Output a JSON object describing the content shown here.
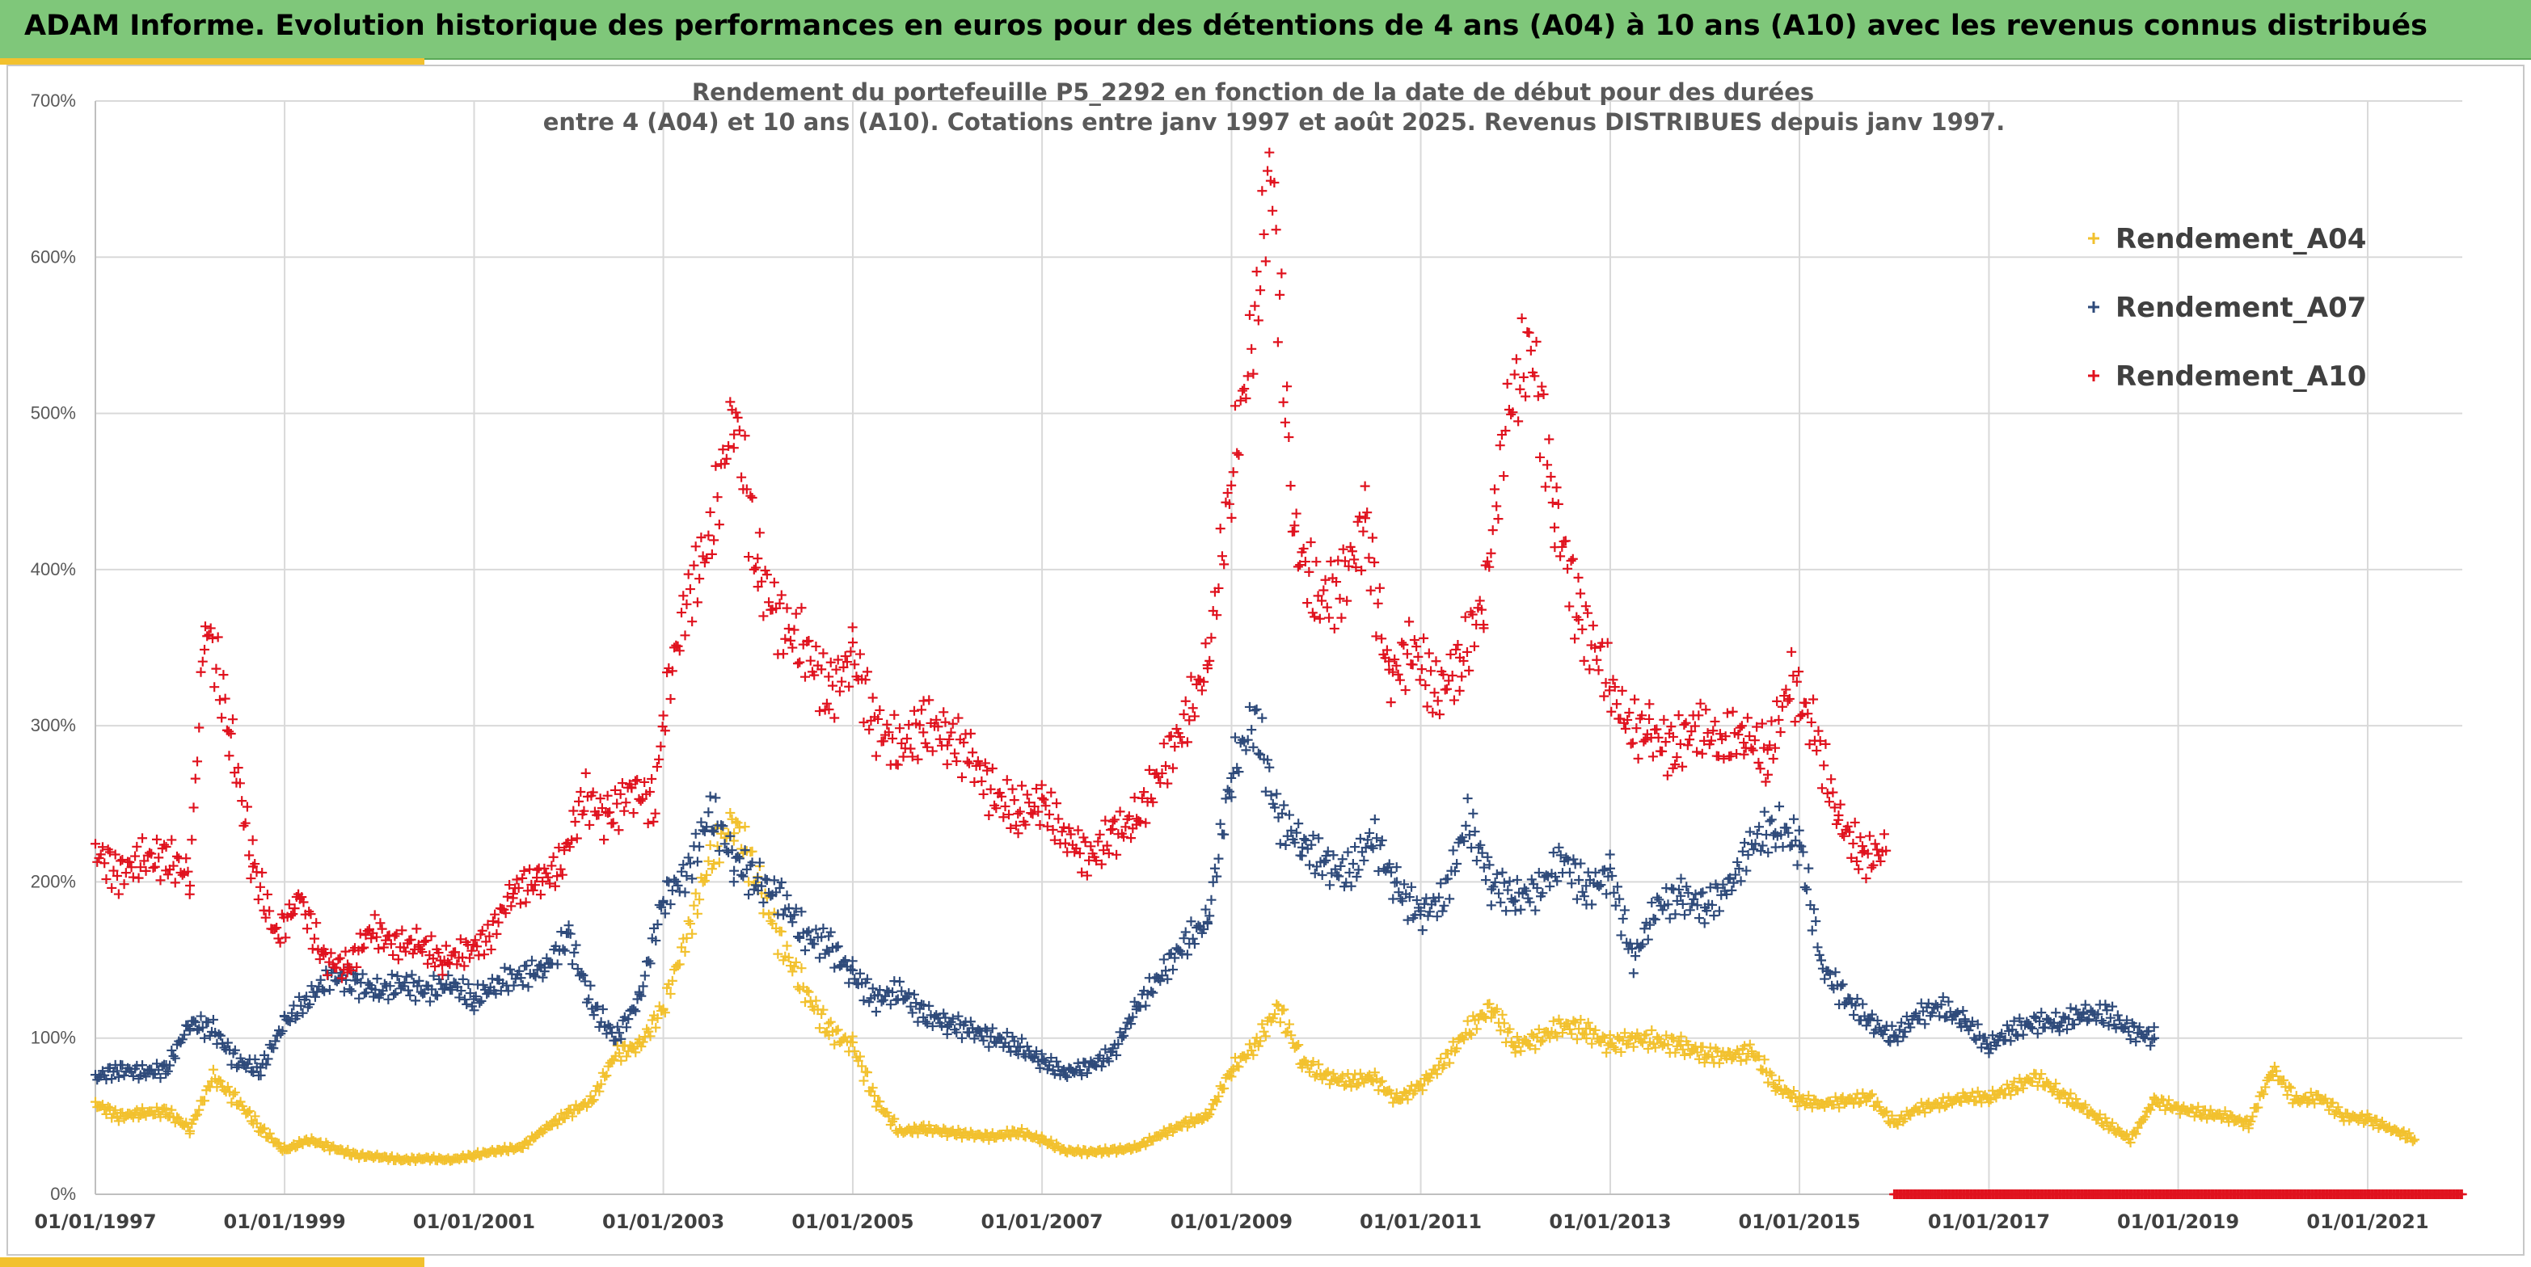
{
  "banner": {
    "title": "ADAM Informe. Evolution historique des performances en euros pour des détentions de 4 ans (A04) à 10 ans (A10) avec les revenus connus distribués"
  },
  "colors": {
    "banner": "#7fc77a",
    "accent": "#f2c12e",
    "A04": "#f2c12e",
    "A07": "#2e4a7a",
    "A10": "#e0121e"
  },
  "chart_data": {
    "type": "scatter",
    "title_line1": "Rendement du portefeuille P5_2292 en fonction de la date de début pour des durées",
    "title_line2": "entre 4 (A04) et 10 ans (A10). Cotations entre janv 1997 et août 2025. Revenus DISTRIBUES depuis janv 1997.",
    "xlabel": "",
    "ylabel": "",
    "xlim": [
      "1997-01-01",
      "2022-01-01"
    ],
    "ylim": [
      0,
      700
    ],
    "y_ticks": [
      "0%",
      "100%",
      "200%",
      "300%",
      "400%",
      "500%",
      "600%",
      "700%"
    ],
    "x_ticks": [
      "01/01/1997",
      "01/01/1999",
      "01/01/2001",
      "01/01/2003",
      "01/01/2005",
      "01/01/2007",
      "01/01/2009",
      "01/01/2011",
      "01/01/2013",
      "01/01/2015",
      "01/01/2017",
      "01/01/2019",
      "01/01/2021"
    ],
    "grid": true,
    "legend_position": "top-right",
    "marker": "+",
    "series": [
      {
        "name": "Rendement_A04",
        "color": "#f2c12e",
        "points": [
          [
            "1997-01-01",
            58
          ],
          [
            "1997-04-01",
            50
          ],
          [
            "1997-07-01",
            52
          ],
          [
            "1997-10-01",
            53
          ],
          [
            "1998-01-01",
            42
          ],
          [
            "1998-04-01",
            75
          ],
          [
            "1998-07-01",
            60
          ],
          [
            "1998-10-01",
            42
          ],
          [
            "1999-01-01",
            28
          ],
          [
            "1999-04-01",
            35
          ],
          [
            "1999-07-01",
            30
          ],
          [
            "1999-10-01",
            25
          ],
          [
            "2000-01-01",
            24
          ],
          [
            "2000-04-01",
            22
          ],
          [
            "2000-07-01",
            23
          ],
          [
            "2000-10-01",
            22
          ],
          [
            "2001-01-01",
            25
          ],
          [
            "2001-04-01",
            28
          ],
          [
            "2001-07-01",
            30
          ],
          [
            "2001-10-01",
            42
          ],
          [
            "2002-01-01",
            52
          ],
          [
            "2002-04-01",
            60
          ],
          [
            "2002-07-01",
            90
          ],
          [
            "2002-10-01",
            95
          ],
          [
            "2003-01-01",
            120
          ],
          [
            "2003-04-01",
            165
          ],
          [
            "2003-07-01",
            215
          ],
          [
            "2003-10-01",
            240
          ],
          [
            "2004-01-01",
            200
          ],
          [
            "2004-04-01",
            160
          ],
          [
            "2004-07-01",
            130
          ],
          [
            "2004-10-01",
            105
          ],
          [
            "2005-01-01",
            95
          ],
          [
            "2005-04-01",
            60
          ],
          [
            "2005-07-01",
            40
          ],
          [
            "2005-10-01",
            42
          ],
          [
            "2006-01-01",
            40
          ],
          [
            "2006-04-01",
            38
          ],
          [
            "2006-07-01",
            37
          ],
          [
            "2006-10-01",
            40
          ],
          [
            "2007-01-01",
            35
          ],
          [
            "2007-04-01",
            28
          ],
          [
            "2007-07-01",
            27
          ],
          [
            "2007-10-01",
            28
          ],
          [
            "2008-01-01",
            30
          ],
          [
            "2008-04-01",
            38
          ],
          [
            "2008-07-01",
            45
          ],
          [
            "2008-10-01",
            50
          ],
          [
            "2009-01-01",
            80
          ],
          [
            "2009-04-01",
            95
          ],
          [
            "2009-07-01",
            120
          ],
          [
            "2009-10-01",
            85
          ],
          [
            "2010-01-01",
            75
          ],
          [
            "2010-04-01",
            72
          ],
          [
            "2010-07-01",
            75
          ],
          [
            "2010-10-01",
            60
          ],
          [
            "2011-01-01",
            70
          ],
          [
            "2011-04-01",
            85
          ],
          [
            "2011-07-01",
            105
          ],
          [
            "2011-10-01",
            120
          ],
          [
            "2012-01-01",
            95
          ],
          [
            "2012-04-01",
            100
          ],
          [
            "2012-07-01",
            108
          ],
          [
            "2012-10-01",
            105
          ],
          [
            "2013-01-01",
            95
          ],
          [
            "2013-04-01",
            100
          ],
          [
            "2013-07-01",
            98
          ],
          [
            "2013-10-01",
            95
          ],
          [
            "2014-01-01",
            90
          ],
          [
            "2014-04-01",
            88
          ],
          [
            "2014-07-01",
            92
          ],
          [
            "2014-10-01",
            70
          ],
          [
            "2015-01-01",
            60
          ],
          [
            "2015-04-01",
            58
          ],
          [
            "2015-07-01",
            60
          ],
          [
            "2015-10-01",
            62
          ],
          [
            "2016-01-01",
            45
          ],
          [
            "2016-04-01",
            55
          ],
          [
            "2016-07-01",
            58
          ],
          [
            "2016-10-01",
            62
          ],
          [
            "2017-01-01",
            62
          ],
          [
            "2017-04-01",
            68
          ],
          [
            "2017-07-01",
            75
          ],
          [
            "2017-10-01",
            65
          ],
          [
            "2018-01-01",
            55
          ],
          [
            "2018-04-01",
            45
          ],
          [
            "2018-07-01",
            35
          ],
          [
            "2018-10-01",
            60
          ],
          [
            "2019-01-01",
            55
          ],
          [
            "2019-04-01",
            52
          ],
          [
            "2019-07-01",
            50
          ],
          [
            "2019-10-01",
            45
          ],
          [
            "2020-01-01",
            80
          ],
          [
            "2020-04-01",
            60
          ],
          [
            "2020-07-01",
            62
          ],
          [
            "2020-10-01",
            50
          ],
          [
            "2021-01-01",
            48
          ],
          [
            "2021-04-01",
            42
          ],
          [
            "2021-07-01",
            35
          ]
        ]
      },
      {
        "name": "Rendement_A07",
        "color": "#2e4a7a",
        "points": [
          [
            "1997-01-01",
            75
          ],
          [
            "1997-04-01",
            80
          ],
          [
            "1997-07-01",
            78
          ],
          [
            "1997-10-01",
            80
          ],
          [
            "1998-01-01",
            110
          ],
          [
            "1998-04-01",
            105
          ],
          [
            "1998-07-01",
            85
          ],
          [
            "1998-10-01",
            80
          ],
          [
            "1999-01-01",
            110
          ],
          [
            "1999-04-01",
            125
          ],
          [
            "1999-07-01",
            140
          ],
          [
            "1999-10-01",
            135
          ],
          [
            "2000-01-01",
            130
          ],
          [
            "2000-04-01",
            135
          ],
          [
            "2000-07-01",
            130
          ],
          [
            "2000-10-01",
            135
          ],
          [
            "2001-01-01",
            125
          ],
          [
            "2001-04-01",
            135
          ],
          [
            "2001-07-01",
            140
          ],
          [
            "2001-10-01",
            145
          ],
          [
            "2002-01-01",
            165
          ],
          [
            "2002-04-01",
            120
          ],
          [
            "2002-07-01",
            100
          ],
          [
            "2002-10-01",
            125
          ],
          [
            "2003-01-01",
            190
          ],
          [
            "2003-04-01",
            205
          ],
          [
            "2003-07-01",
            245
          ],
          [
            "2003-10-01",
            215
          ],
          [
            "2004-01-01",
            200
          ],
          [
            "2004-04-01",
            190
          ],
          [
            "2004-07-01",
            165
          ],
          [
            "2004-10-01",
            160
          ],
          [
            "2005-01-01",
            140
          ],
          [
            "2005-04-01",
            125
          ],
          [
            "2005-07-01",
            130
          ],
          [
            "2005-10-01",
            115
          ],
          [
            "2006-01-01",
            110
          ],
          [
            "2006-04-01",
            105
          ],
          [
            "2006-07-01",
            100
          ],
          [
            "2006-10-01",
            95
          ],
          [
            "2007-01-01",
            85
          ],
          [
            "2007-04-01",
            78
          ],
          [
            "2007-07-01",
            82
          ],
          [
            "2007-10-01",
            90
          ],
          [
            "2008-01-01",
            120
          ],
          [
            "2008-04-01",
            140
          ],
          [
            "2008-07-01",
            160
          ],
          [
            "2008-10-01",
            175
          ],
          [
            "2009-01-01",
            270
          ],
          [
            "2009-04-01",
            305
          ],
          [
            "2009-07-01",
            240
          ],
          [
            "2009-10-01",
            225
          ],
          [
            "2010-01-01",
            210
          ],
          [
            "2010-04-01",
            205
          ],
          [
            "2010-07-01",
            230
          ],
          [
            "2010-10-01",
            195
          ],
          [
            "2011-01-01",
            180
          ],
          [
            "2011-04-01",
            190
          ],
          [
            "2011-07-01",
            240
          ],
          [
            "2011-10-01",
            200
          ],
          [
            "2012-01-01",
            190
          ],
          [
            "2012-04-01",
            195
          ],
          [
            "2012-07-01",
            215
          ],
          [
            "2012-10-01",
            195
          ],
          [
            "2013-01-01",
            205
          ],
          [
            "2013-04-01",
            150
          ],
          [
            "2013-07-01",
            185
          ],
          [
            "2013-10-01",
            190
          ],
          [
            "2014-01-01",
            185
          ],
          [
            "2014-04-01",
            195
          ],
          [
            "2014-07-01",
            225
          ],
          [
            "2014-10-01",
            235
          ],
          [
            "2015-01-01",
            225
          ],
          [
            "2015-04-01",
            145
          ],
          [
            "2015-07-01",
            125
          ],
          [
            "2015-10-01",
            110
          ],
          [
            "2016-01-01",
            100
          ],
          [
            "2016-04-01",
            115
          ],
          [
            "2016-07-01",
            120
          ],
          [
            "2016-10-01",
            110
          ],
          [
            "2017-01-01",
            95
          ],
          [
            "2017-04-01",
            105
          ],
          [
            "2017-07-01",
            110
          ],
          [
            "2017-10-01",
            110
          ],
          [
            "2018-01-01",
            115
          ],
          [
            "2018-04-01",
            115
          ],
          [
            "2018-07-01",
            105
          ],
          [
            "2018-10-01",
            100
          ]
        ]
      },
      {
        "name": "Rendement_A10",
        "color": "#e0121e",
        "points": [
          [
            "1997-01-01",
            220
          ],
          [
            "1997-04-01",
            205
          ],
          [
            "1997-07-01",
            215
          ],
          [
            "1997-10-01",
            215
          ],
          [
            "1998-01-01",
            205
          ],
          [
            "1998-03-01",
            370
          ],
          [
            "1998-06-01",
            300
          ],
          [
            "1998-09-01",
            210
          ],
          [
            "1998-12-01",
            165
          ],
          [
            "1999-03-01",
            190
          ],
          [
            "1999-06-01",
            150
          ],
          [
            "1999-09-01",
            145
          ],
          [
            "1999-12-01",
            170
          ],
          [
            "2000-03-01",
            160
          ],
          [
            "2000-06-01",
            160
          ],
          [
            "2000-09-01",
            150
          ],
          [
            "2000-12-01",
            155
          ],
          [
            "2001-03-01",
            165
          ],
          [
            "2001-06-01",
            195
          ],
          [
            "2001-09-01",
            200
          ],
          [
            "2001-12-01",
            210
          ],
          [
            "2002-03-01",
            255
          ],
          [
            "2002-06-01",
            240
          ],
          [
            "2002-09-01",
            260
          ],
          [
            "2002-12-01",
            250
          ],
          [
            "2003-01-01",
            310
          ],
          [
            "2003-04-01",
            380
          ],
          [
            "2003-07-01",
            420
          ],
          [
            "2003-10-01",
            505
          ],
          [
            "2004-01-01",
            400
          ],
          [
            "2004-04-01",
            365
          ],
          [
            "2004-07-01",
            350
          ],
          [
            "2004-10-01",
            320
          ],
          [
            "2005-01-01",
            345
          ],
          [
            "2005-04-01",
            300
          ],
          [
            "2005-07-01",
            285
          ],
          [
            "2005-10-01",
            300
          ],
          [
            "2006-01-01",
            295
          ],
          [
            "2006-04-01",
            280
          ],
          [
            "2006-07-01",
            255
          ],
          [
            "2006-10-01",
            245
          ],
          [
            "2007-01-01",
            250
          ],
          [
            "2007-04-01",
            230
          ],
          [
            "2007-07-01",
            215
          ],
          [
            "2007-10-01",
            230
          ],
          [
            "2008-01-01",
            240
          ],
          [
            "2008-04-01",
            270
          ],
          [
            "2008-07-01",
            300
          ],
          [
            "2008-10-01",
            340
          ],
          [
            "2009-01-01",
            460
          ],
          [
            "2009-04-01",
            560
          ],
          [
            "2009-06-01",
            660
          ],
          [
            "2009-09-01",
            420
          ],
          [
            "2009-12-01",
            380
          ],
          [
            "2010-03-01",
            390
          ],
          [
            "2010-06-01",
            430
          ],
          [
            "2010-09-01",
            330
          ],
          [
            "2010-12-01",
            350
          ],
          [
            "2011-03-01",
            320
          ],
          [
            "2011-06-01",
            340
          ],
          [
            "2011-09-01",
            380
          ],
          [
            "2011-12-01",
            500
          ],
          [
            "2012-03-01",
            545
          ],
          [
            "2012-06-01",
            440
          ],
          [
            "2012-09-01",
            370
          ],
          [
            "2012-12-01",
            340
          ],
          [
            "2013-03-01",
            300
          ],
          [
            "2013-06-01",
            295
          ],
          [
            "2013-09-01",
            285
          ],
          [
            "2013-12-01",
            300
          ],
          [
            "2014-03-01",
            290
          ],
          [
            "2014-06-01",
            295
          ],
          [
            "2014-09-01",
            280
          ],
          [
            "2014-12-01",
            330
          ],
          [
            "2015-03-01",
            295
          ],
          [
            "2015-06-01",
            240
          ],
          [
            "2015-09-01",
            215
          ],
          [
            "2015-12-01",
            220
          ]
        ]
      }
    ],
    "zero_band": {
      "series": "Rendement_A10",
      "from": "2016-01-01",
      "to": "2022-01-01",
      "value": 0
    }
  }
}
